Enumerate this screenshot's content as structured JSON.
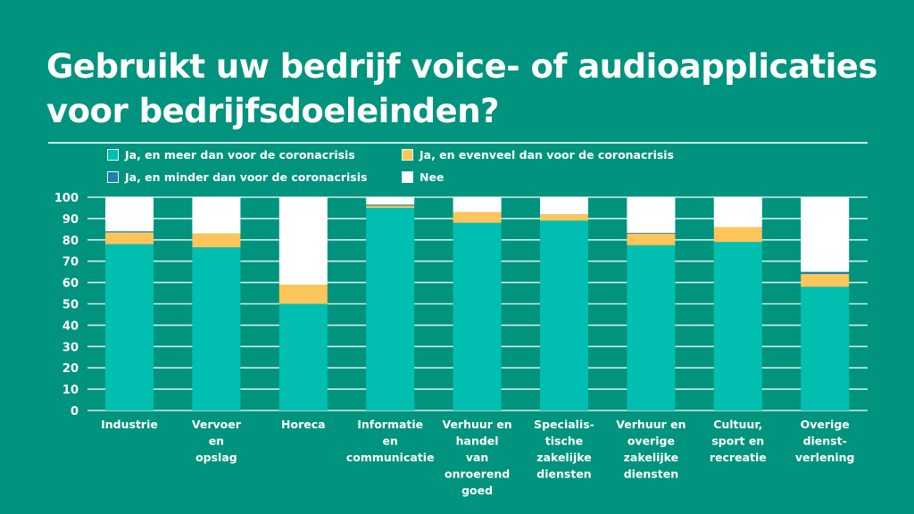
{
  "title": "Gebruikt uw bedrijf voice- of audioapplicaties voor bedrijfsdoeleinden?",
  "colors": {
    "background": "#00937d",
    "meer": "#00bfb0",
    "evenveel": "#fdc55a",
    "minder": "#1c7fae",
    "nee": "#ffffff",
    "grid": "#cdeee6"
  },
  "chart_data": {
    "type": "bar",
    "stacked": true,
    "title": "Gebruikt uw bedrijf voice- of audioapplicaties voor bedrijfsdoeleinden?",
    "xlabel": "",
    "ylabel": "",
    "ylim": [
      0,
      100
    ],
    "yticks": [
      0,
      10,
      20,
      30,
      40,
      50,
      60,
      70,
      80,
      90,
      100
    ],
    "grid": true,
    "legend_position": "top",
    "categories": [
      [
        "Industrie"
      ],
      [
        "Vervoer",
        "en",
        "opslag"
      ],
      [
        "Horeca"
      ],
      [
        "Informatie",
        "en",
        "communicatie"
      ],
      [
        "Verhuur en",
        "handel",
        "van",
        "onroerend",
        "goed"
      ],
      [
        "Specialis-",
        "tische",
        "zakelijke",
        "diensten"
      ],
      [
        "Verhuur en",
        "overige",
        "zakelijke",
        "diensten"
      ],
      [
        "Cultuur,",
        "sport en",
        "recreatie"
      ],
      [
        "Overige",
        "dienst-",
        "verlening"
      ]
    ],
    "series": [
      {
        "name": "Ja, en meer dan voor de coronacrisis",
        "color_key": "meer",
        "values": [
          78,
          76.5,
          50,
          95,
          88,
          89,
          77.5,
          79,
          58
        ]
      },
      {
        "name": "Ja, en evenveel dan voor de coronacrisis",
        "color_key": "evenveel",
        "values": [
          5.5,
          6.5,
          9,
          1,
          5,
          3,
          5.5,
          7,
          6
        ]
      },
      {
        "name": "Ja, en minder dan voor de coronacrisis",
        "color_key": "minder",
        "values": [
          0.5,
          0,
          0,
          0.5,
          0,
          0,
          0.3,
          0,
          1
        ]
      },
      {
        "name": "Nee",
        "color_key": "nee",
        "values": [
          16,
          17,
          41,
          3.5,
          7,
          8,
          16.7,
          14,
          35
        ]
      }
    ]
  },
  "legend": [
    {
      "label": "Ja, en meer dan voor de coronacrisis",
      "color_key": "meer"
    },
    {
      "label": "Ja, en evenveel dan voor de coronacrisis",
      "color_key": "evenveel"
    },
    {
      "label": "Ja, en minder dan voor de coronacrisis",
      "color_key": "minder"
    },
    {
      "label": "Nee",
      "color_key": "nee"
    }
  ]
}
